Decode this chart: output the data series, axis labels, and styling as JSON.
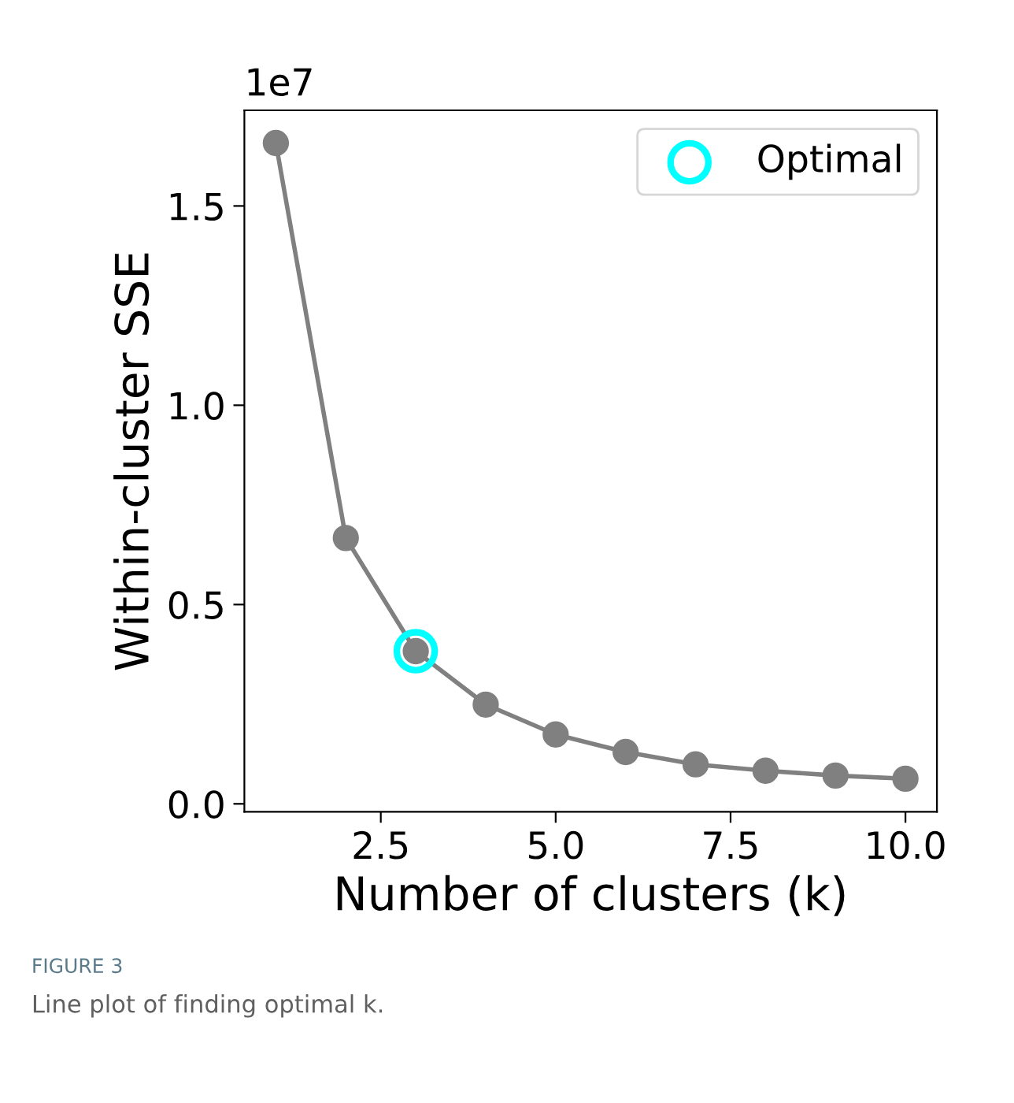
{
  "chart_data": {
    "type": "line",
    "xlabel": "Number of clusters (k)",
    "ylabel": "Within-cluster SSE",
    "x": [
      1,
      2,
      3,
      4,
      5,
      6,
      7,
      8,
      9,
      10
    ],
    "series": [
      {
        "color": "#808080",
        "values": [
          1.658,
          0.667,
          0.383,
          0.249,
          0.174,
          0.13,
          0.099,
          0.083,
          0.071,
          0.063
        ],
        "marker": "circle"
      },
      {
        "type": "scatter",
        "name": "Optimal",
        "color": "#00ffff",
        "x": [
          3
        ],
        "values": [
          0.383
        ],
        "marker": "circle"
      }
    ],
    "xlim": [
      0.55,
      10.45
    ],
    "xticks": [
      2.5,
      {
        "value": 5,
        "label": "5.0"
      },
      7.5,
      {
        "value": 10,
        "label": "10.0"
      }
    ],
    "ylim": [
      -0.02,
      1.74
    ],
    "yticks": [
      {
        "value": 0,
        "label": "0.0"
      },
      0.5,
      {
        "value": 1,
        "label": "1.0"
      },
      1.5
    ],
    "legend": "top right",
    "grid": false,
    "annotations": [
      "1e7",
      "FIGURE 3",
      "Line plot of finding optimal k."
    ]
  }
}
